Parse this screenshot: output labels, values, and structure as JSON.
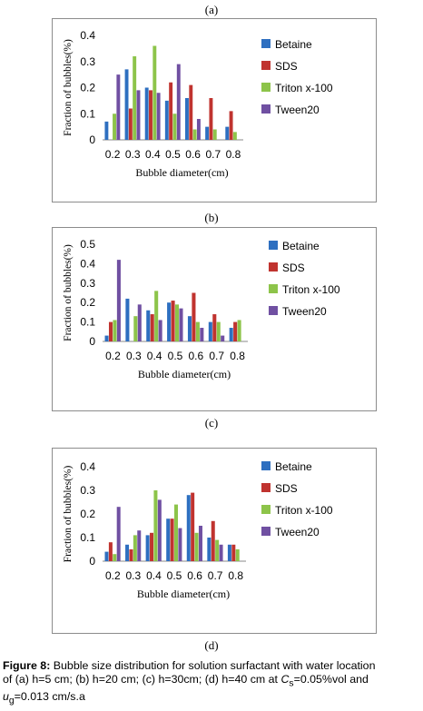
{
  "chart_data": [
    {
      "label": "(a)",
      "type": "bar",
      "categories": [
        "0.2",
        "0.3",
        "0.4",
        "0.5",
        "0.6",
        "0.7",
        "0.8"
      ],
      "ylim": [
        0,
        0.4
      ],
      "yticks": [
        "0",
        "0.1",
        "0.2",
        "0.3",
        "0.4"
      ],
      "xlabel": "Bubble diameter(cm)",
      "ylabel": "Fraction of bubbles(%)",
      "series": [
        {
          "name": "Betaine",
          "color": "#2e6fc0",
          "values": [
            0.07,
            0.27,
            0.2,
            0.15,
            0.16,
            0.05,
            0.05
          ]
        },
        {
          "name": "SDS",
          "color": "#c0332f",
          "values": [
            0.0,
            0.12,
            0.19,
            0.22,
            0.21,
            0.16,
            0.11
          ]
        },
        {
          "name": "Triton x-100",
          "color": "#8dc44a",
          "values": [
            0.1,
            0.32,
            0.36,
            0.1,
            0.04,
            0.04,
            0.03
          ]
        },
        {
          "name": "Tween20",
          "color": "#7050a2",
          "values": [
            0.25,
            0.19,
            0.18,
            0.29,
            0.08,
            0.0,
            0.0
          ]
        }
      ]
    },
    {
      "label": "(b)",
      "type": "bar",
      "categories": [
        "0.2",
        "0.3",
        "0.4",
        "0.5",
        "0.6",
        "0.7",
        "0.8"
      ],
      "ylim": [
        0,
        0.5
      ],
      "yticks": [
        "0",
        "0.1",
        "0.2",
        "0.3",
        "0.4",
        "0.5"
      ],
      "xlabel": "Bubble diameter(cm)",
      "ylabel": "Fraction of bubbles(%)",
      "series": [
        {
          "name": "Betaine",
          "color": "#2e6fc0",
          "values": [
            0.03,
            0.22,
            0.16,
            0.2,
            0.13,
            0.1,
            0.07
          ]
        },
        {
          "name": "SDS",
          "color": "#c0332f",
          "values": [
            0.1,
            0.0,
            0.14,
            0.21,
            0.25,
            0.14,
            0.1
          ]
        },
        {
          "name": "Triton x-100",
          "color": "#8dc44a",
          "values": [
            0.11,
            0.13,
            0.26,
            0.19,
            0.1,
            0.1,
            0.11
          ]
        },
        {
          "name": "Tween20",
          "color": "#7050a2",
          "values": [
            0.42,
            0.19,
            0.11,
            0.17,
            0.07,
            0.03,
            0.0
          ]
        }
      ]
    },
    {
      "label": "(c)",
      "type": "bar",
      "categories": [
        "0.2",
        "0.3",
        "0.4",
        "0.5",
        "0.6",
        "0.7",
        "0.8"
      ],
      "ylim": [
        0,
        0.4
      ],
      "yticks": [
        "0",
        "0.1",
        "0.2",
        "0.3",
        "0.4"
      ],
      "xlabel": "Bubble diameter(cm)",
      "ylabel": "Fraction of bubbles(%)",
      "series": [
        {
          "name": "Betaine",
          "color": "#2e6fc0",
          "values": [
            0.04,
            0.07,
            0.11,
            0.18,
            0.28,
            0.1,
            0.07
          ]
        },
        {
          "name": "SDS",
          "color": "#c0332f",
          "values": [
            0.08,
            0.05,
            0.12,
            0.18,
            0.29,
            0.17,
            0.07
          ]
        },
        {
          "name": "Triton x-100",
          "color": "#8dc44a",
          "values": [
            0.03,
            0.11,
            0.3,
            0.24,
            0.12,
            0.09,
            0.05
          ]
        },
        {
          "name": "Tween20",
          "color": "#7050a2",
          "values": [
            0.23,
            0.13,
            0.26,
            0.14,
            0.15,
            0.07,
            0.0
          ]
        }
      ]
    }
  ],
  "panel_d_label": "(d)",
  "caption": {
    "figure": "Figure 8:",
    "line1": " Bubble size distribution for solution surfactant with water location",
    "line2": "of (a) h=5 cm; (b) h=20 cm; (c) h=30cm; (d) h=40 cm at ",
    "cs_c": "C",
    "cs_sub": "s",
    "cs_rest": "=0.05%vol and",
    "ug_u": "u",
    "ug_sub": "g",
    "ug_rest": "=0.013 cm/s.a"
  }
}
